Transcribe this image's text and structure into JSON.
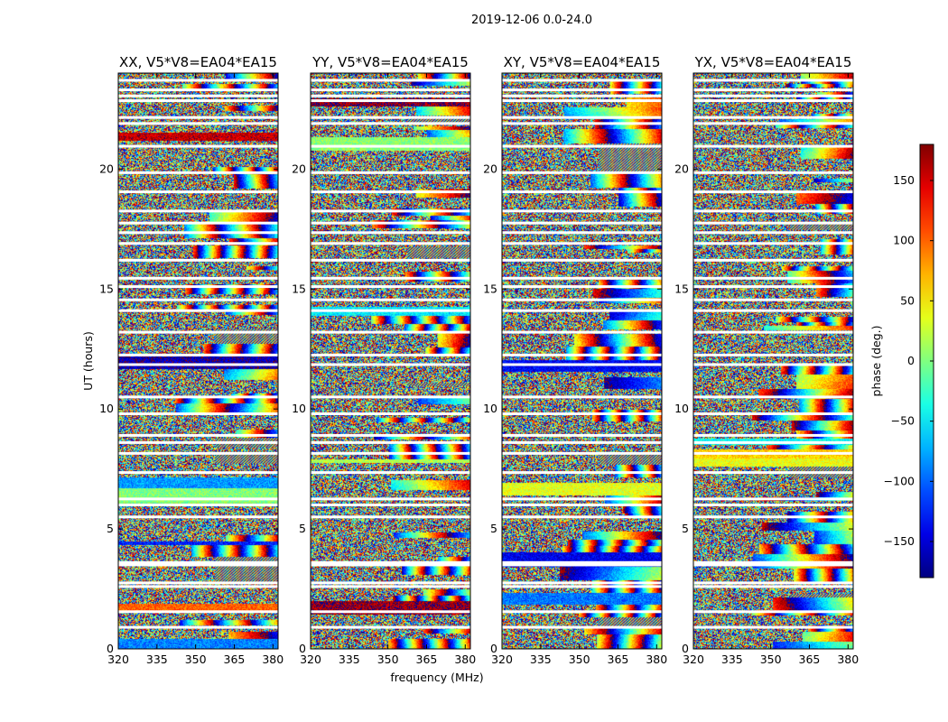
{
  "figure": {
    "suptitle": "2019-12-06 0.0-24.0",
    "xlabel": "frequency (MHz)",
    "ylabel": "UT (hours)"
  },
  "chart_data": {
    "type": "heatmap",
    "x_range_mhz": [
      320,
      382
    ],
    "x_ticks": [
      320,
      335,
      350,
      365,
      380
    ],
    "y_range_hours": [
      0,
      24
    ],
    "y_ticks": [
      0,
      5,
      10,
      15,
      20
    ],
    "panels": [
      {
        "title": "XX, V5*V8=EA04*EA15",
        "seed": 11
      },
      {
        "title": "YY, V5*V8=EA04*EA15",
        "seed": 23
      },
      {
        "title": "XY, V5*V8=EA04*EA15",
        "seed": 37
      },
      {
        "title": "YX, V5*V8=EA04*EA15",
        "seed": 53
      }
    ],
    "flagged_gaps_hours": [
      0.9,
      1.55,
      2.6,
      2.75,
      3.5,
      3.6,
      5.5,
      6.0,
      6.25,
      7.35,
      8.15,
      8.6,
      8.9,
      9.8,
      10.5,
      11.85,
      12.25,
      13.2,
      14.1,
      14.55,
      15.1,
      15.45,
      16.2,
      16.9,
      17.35,
      17.75,
      18.25,
      19.05,
      19.85,
      20.95,
      21.9,
      22.15,
      22.85,
      23.05,
      23.3,
      23.7
    ],
    "colorbar": {
      "label": "phase (deg.)",
      "range": [
        -180,
        180
      ],
      "ticks": [
        -150,
        -100,
        -50,
        0,
        50,
        100,
        150
      ],
      "tick_labels": [
        "−150",
        "−100",
        "−50",
        "0",
        "50",
        "100",
        "150"
      ],
      "colormap": "jet"
    }
  }
}
